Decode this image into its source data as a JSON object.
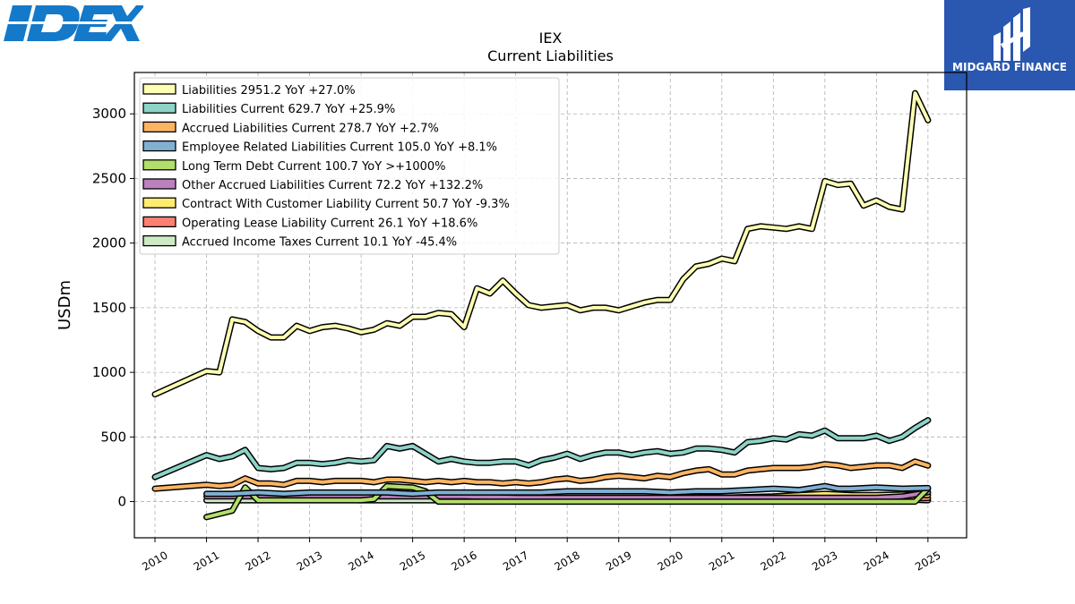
{
  "logos": {
    "left_text": "IDEX",
    "right_text": "MIDGARD FINANCE"
  },
  "chart_data": {
    "type": "line",
    "title": "IEX",
    "subtitle": "Current  Liabilities",
    "ylabel": "USDm",
    "xlabel": "",
    "xlim": [
      2009.6,
      2025.75
    ],
    "ylim": [
      -280,
      3320
    ],
    "yticks": [
      0,
      500,
      1000,
      1500,
      2000,
      2500,
      3000
    ],
    "xticks": [
      2010,
      2011,
      2012,
      2013,
      2014,
      2015,
      2016,
      2017,
      2018,
      2019,
      2020,
      2021,
      2022,
      2023,
      2024,
      2025
    ],
    "grid": true,
    "legend_position": "upper left",
    "series": [
      {
        "name": "Liabilities",
        "legend": "Liabilities  2951.2 YoY +27.0%",
        "color": "#ffffb3",
        "x": [
          2010.0,
          2011.0,
          2011.25,
          2011.5,
          2011.75,
          2012.0,
          2012.25,
          2012.5,
          2012.75,
          2013.0,
          2013.25,
          2013.5,
          2013.75,
          2014.0,
          2014.25,
          2014.5,
          2014.75,
          2015.0,
          2015.25,
          2015.5,
          2015.75,
          2016.0,
          2016.25,
          2016.5,
          2016.75,
          2017.0,
          2017.25,
          2017.5,
          2017.75,
          2018.0,
          2018.25,
          2018.5,
          2018.75,
          2019.0,
          2019.25,
          2019.5,
          2019.75,
          2020.0,
          2020.25,
          2020.5,
          2020.75,
          2021.0,
          2021.25,
          2021.5,
          2021.75,
          2022.0,
          2022.25,
          2022.5,
          2022.75,
          2023.0,
          2023.25,
          2023.5,
          2023.75,
          2024.0,
          2024.25,
          2024.5,
          2024.75,
          2025.0
        ],
        "y": [
          830,
          1010,
          1000,
          1410,
          1390,
          1320,
          1270,
          1270,
          1360,
          1320,
          1350,
          1360,
          1340,
          1310,
          1330,
          1380,
          1360,
          1430,
          1430,
          1460,
          1450,
          1350,
          1650,
          1610,
          1710,
          1610,
          1520,
          1500,
          1510,
          1520,
          1480,
          1500,
          1500,
          1480,
          1510,
          1540,
          1560,
          1560,
          1720,
          1820,
          1840,
          1880,
          1860,
          2110,
          2130,
          2120,
          2110,
          2130,
          2110,
          2480,
          2450,
          2460,
          2290,
          2330,
          2280,
          2260,
          3160,
          2951
        ]
      },
      {
        "name": "Liabilities Current",
        "legend": "Liabilities Current  629.7 YoY +25.9%",
        "color": "#8dd3c7",
        "x": [
          2010.0,
          2011.0,
          2011.25,
          2011.5,
          2011.75,
          2012.0,
          2012.25,
          2012.5,
          2012.75,
          2013.0,
          2013.25,
          2013.5,
          2013.75,
          2014.0,
          2014.25,
          2014.5,
          2014.75,
          2015.0,
          2015.25,
          2015.5,
          2015.75,
          2016.0,
          2016.25,
          2016.5,
          2016.75,
          2017.0,
          2017.25,
          2017.5,
          2017.75,
          2018.0,
          2018.25,
          2018.5,
          2018.75,
          2019.0,
          2019.25,
          2019.5,
          2019.75,
          2020.0,
          2020.25,
          2020.5,
          2020.75,
          2021.0,
          2021.25,
          2021.5,
          2021.75,
          2022.0,
          2022.25,
          2022.5,
          2022.75,
          2023.0,
          2023.25,
          2023.5,
          2023.75,
          2024.0,
          2024.25,
          2024.5,
          2024.75,
          2025.0
        ],
        "y": [
          190,
          360,
          330,
          350,
          400,
          260,
          250,
          260,
          300,
          300,
          290,
          300,
          320,
          310,
          320,
          430,
          410,
          430,
          370,
          310,
          330,
          310,
          300,
          300,
          310,
          310,
          280,
          320,
          340,
          370,
          330,
          360,
          380,
          380,
          360,
          380,
          390,
          370,
          380,
          410,
          410,
          400,
          380,
          460,
          470,
          490,
          480,
          520,
          510,
          550,
          490,
          490,
          490,
          510,
          470,
          500,
          570,
          630
        ]
      },
      {
        "name": "Accrued Liabilities Current",
        "legend": "Accrued Liabilities Current  278.7 YoY +2.7%",
        "color": "#fdb462",
        "x": [
          2010.0,
          2011.0,
          2011.25,
          2011.5,
          2011.75,
          2012.0,
          2012.25,
          2012.5,
          2012.75,
          2013.0,
          2013.25,
          2013.5,
          2013.75,
          2014.0,
          2014.25,
          2014.5,
          2014.75,
          2015.0,
          2015.25,
          2015.5,
          2015.75,
          2016.0,
          2016.25,
          2016.5,
          2016.75,
          2017.0,
          2017.25,
          2017.5,
          2017.75,
          2018.0,
          2018.25,
          2018.5,
          2018.75,
          2019.0,
          2019.25,
          2019.5,
          2019.75,
          2020.0,
          2020.25,
          2020.5,
          2020.75,
          2021.0,
          2021.25,
          2021.5,
          2021.75,
          2022.0,
          2022.25,
          2022.5,
          2022.75,
          2023.0,
          2023.25,
          2023.5,
          2023.75,
          2024.0,
          2024.25,
          2024.5,
          2024.75,
          2025.0
        ],
        "y": [
          100,
          130,
          120,
          130,
          180,
          140,
          140,
          130,
          160,
          160,
          150,
          160,
          160,
          160,
          150,
          170,
          170,
          160,
          150,
          160,
          150,
          160,
          150,
          150,
          140,
          150,
          140,
          150,
          170,
          180,
          160,
          170,
          190,
          200,
          190,
          180,
          200,
          190,
          220,
          240,
          250,
          210,
          210,
          240,
          250,
          260,
          260,
          260,
          270,
          290,
          280,
          260,
          270,
          280,
          280,
          260,
          310,
          279
        ]
      },
      {
        "name": "Employee Related Liabilities Current",
        "legend": "Employee Related Liabilities Current  105.0 YoY +8.1%",
        "color": "#80b1d3",
        "x": [
          2011.0,
          2011.5,
          2012.0,
          2012.5,
          2013.0,
          2013.5,
          2014.0,
          2014.5,
          2015.0,
          2015.5,
          2016.0,
          2016.5,
          2017.0,
          2017.5,
          2018.0,
          2018.5,
          2019.0,
          2019.5,
          2020.0,
          2020.5,
          2021.0,
          2021.5,
          2022.0,
          2022.5,
          2023.0,
          2023.25,
          2023.5,
          2024.0,
          2024.5,
          2025.0
        ],
        "y": [
          60,
          60,
          70,
          60,
          70,
          70,
          70,
          70,
          60,
          70,
          70,
          70,
          70,
          70,
          80,
          80,
          80,
          80,
          70,
          80,
          80,
          90,
          100,
          90,
          120,
          100,
          100,
          110,
          100,
          105
        ]
      },
      {
        "name": "Long Term Debt Current",
        "legend": "Long Term Debt Current  100.7 YoY >+1000%",
        "color": "#b3de69",
        "x": [
          2011.0,
          2011.5,
          2011.75,
          2012.0,
          2012.5,
          2013.0,
          2013.5,
          2014.0,
          2014.25,
          2014.5,
          2015.0,
          2015.25,
          2015.5,
          2016.0,
          2017.0,
          2018.0,
          2019.0,
          2020.0,
          2021.0,
          2022.0,
          2023.0,
          2024.0,
          2024.75,
          2025.0
        ],
        "y": [
          -120,
          -70,
          110,
          10,
          10,
          10,
          10,
          10,
          20,
          120,
          110,
          80,
          0,
          0,
          0,
          0,
          0,
          0,
          0,
          0,
          0,
          0,
          0,
          101
        ]
      },
      {
        "name": "Other Accrued Liabilities Current",
        "legend": "Other Accrued Liabilities Current  72.2 YoY +132.2%",
        "color": "#bc80bd",
        "x": [
          2011.0,
          2012.0,
          2013.0,
          2014.0,
          2015.0,
          2016.0,
          2017.0,
          2018.0,
          2019.0,
          2020.0,
          2021.0,
          2022.0,
          2023.0,
          2024.0,
          2024.5,
          2025.0
        ],
        "y": [
          40,
          40,
          40,
          40,
          40,
          40,
          30,
          30,
          30,
          30,
          30,
          30,
          30,
          30,
          40,
          72
        ]
      },
      {
        "name": "Contract With Customer Liability Current",
        "legend": "Contract With Customer Liability Current  50.7 YoY -9.3%",
        "color": "#ffed6f",
        "x": [
          2018.0,
          2019.0,
          2020.0,
          2020.5,
          2021.0,
          2022.0,
          2022.5,
          2023.0,
          2023.5,
          2024.0,
          2024.5,
          2025.0
        ],
        "y": [
          20,
          20,
          20,
          40,
          30,
          40,
          50,
          60,
          50,
          50,
          55,
          51
        ]
      },
      {
        "name": "Operating Lease Liability Current",
        "legend": "Operating Lease Liability Current  26.1 YoY +18.6%",
        "color": "#fb8072",
        "x": [
          2019.0,
          2019.5,
          2020.0,
          2020.5,
          2021.0,
          2022.0,
          2023.0,
          2024.0,
          2025.0
        ],
        "y": [
          20,
          20,
          20,
          20,
          20,
          20,
          20,
          22,
          26
        ]
      },
      {
        "name": "Accrued Income Taxes Current",
        "legend": "Accrued Income Taxes Current  10.1 YoY -45.4%",
        "color": "#ccebc5",
        "x": [
          2011.0,
          2012.0,
          2013.0,
          2014.0,
          2015.0,
          2016.0,
          2017.0,
          2018.0,
          2019.0,
          2020.0,
          2020.5,
          2021.0,
          2022.0,
          2022.5,
          2023.0,
          2023.5,
          2024.0,
          2024.5,
          2025.0
        ],
        "y": [
          10,
          10,
          20,
          10,
          10,
          10,
          10,
          10,
          10,
          10,
          30,
          20,
          20,
          40,
          30,
          20,
          20,
          18,
          10
        ]
      }
    ]
  }
}
